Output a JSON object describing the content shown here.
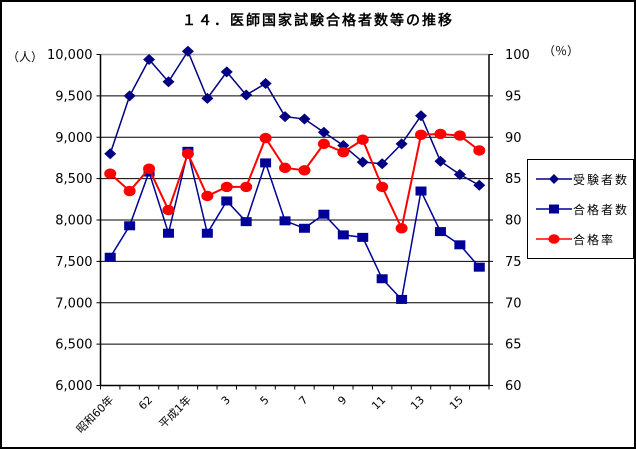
{
  "title": "１４．医師国家試験合格者数等の推移",
  "axes": {
    "left_unit": "（人）",
    "right_unit": "（％）",
    "left_ticks": [
      "10,000",
      "9,500",
      "9,000",
      "8,500",
      "8,000",
      "7,500",
      "7,000",
      "6,500",
      "6,000"
    ],
    "right_ticks": [
      "100",
      "95",
      "90",
      "85",
      "80",
      "75",
      "70",
      "65",
      "60"
    ]
  },
  "legend": {
    "items": [
      {
        "label": "受験者数",
        "marker": "diamond"
      },
      {
        "label": "合格者数",
        "marker": "square"
      },
      {
        "label": "合格率",
        "marker": "circle"
      }
    ]
  },
  "chart_data": {
    "type": "line",
    "title": "１４．医師国家試験合格者数等の推移",
    "categories": [
      "昭和60年",
      "",
      "62",
      "",
      "平成1年",
      "",
      "3",
      "",
      "5",
      "",
      "7",
      "",
      "9",
      "",
      "11",
      "",
      "13",
      "",
      "15",
      ""
    ],
    "left_axis": {
      "unit": "人",
      "min": 6000,
      "max": 10000,
      "step": 500
    },
    "right_axis": {
      "unit": "%",
      "min": 60,
      "max": 100,
      "step": 5
    },
    "grid": "horizontal",
    "legend_position": "right",
    "series": [
      {
        "name": "受験者数",
        "axis": "left",
        "color": "#000080",
        "marker": "diamond",
        "values": [
          8800,
          9500,
          9940,
          9670,
          10040,
          9470,
          9790,
          9510,
          9650,
          9250,
          9220,
          9060,
          8900,
          8700,
          8680,
          8920,
          9260,
          8710,
          8550,
          8420
        ]
      },
      {
        "name": "合格者数",
        "axis": "left",
        "color": "#000099",
        "marker": "square",
        "values": [
          7550,
          7930,
          8580,
          7840,
          8830,
          7840,
          8230,
          7980,
          8690,
          7990,
          7900,
          8070,
          7820,
          7790,
          7290,
          7040,
          8350,
          7860,
          7700,
          7430
        ]
      },
      {
        "name": "合格率",
        "axis": "right",
        "color": "#ff0000",
        "marker": "circle",
        "values": [
          85.6,
          83.5,
          86.2,
          81.2,
          88.0,
          82.9,
          84.0,
          84.0,
          89.9,
          86.3,
          86.0,
          89.2,
          88.2,
          89.7,
          84.0,
          79.0,
          90.3,
          90.4,
          90.2,
          88.4
        ]
      }
    ]
  }
}
